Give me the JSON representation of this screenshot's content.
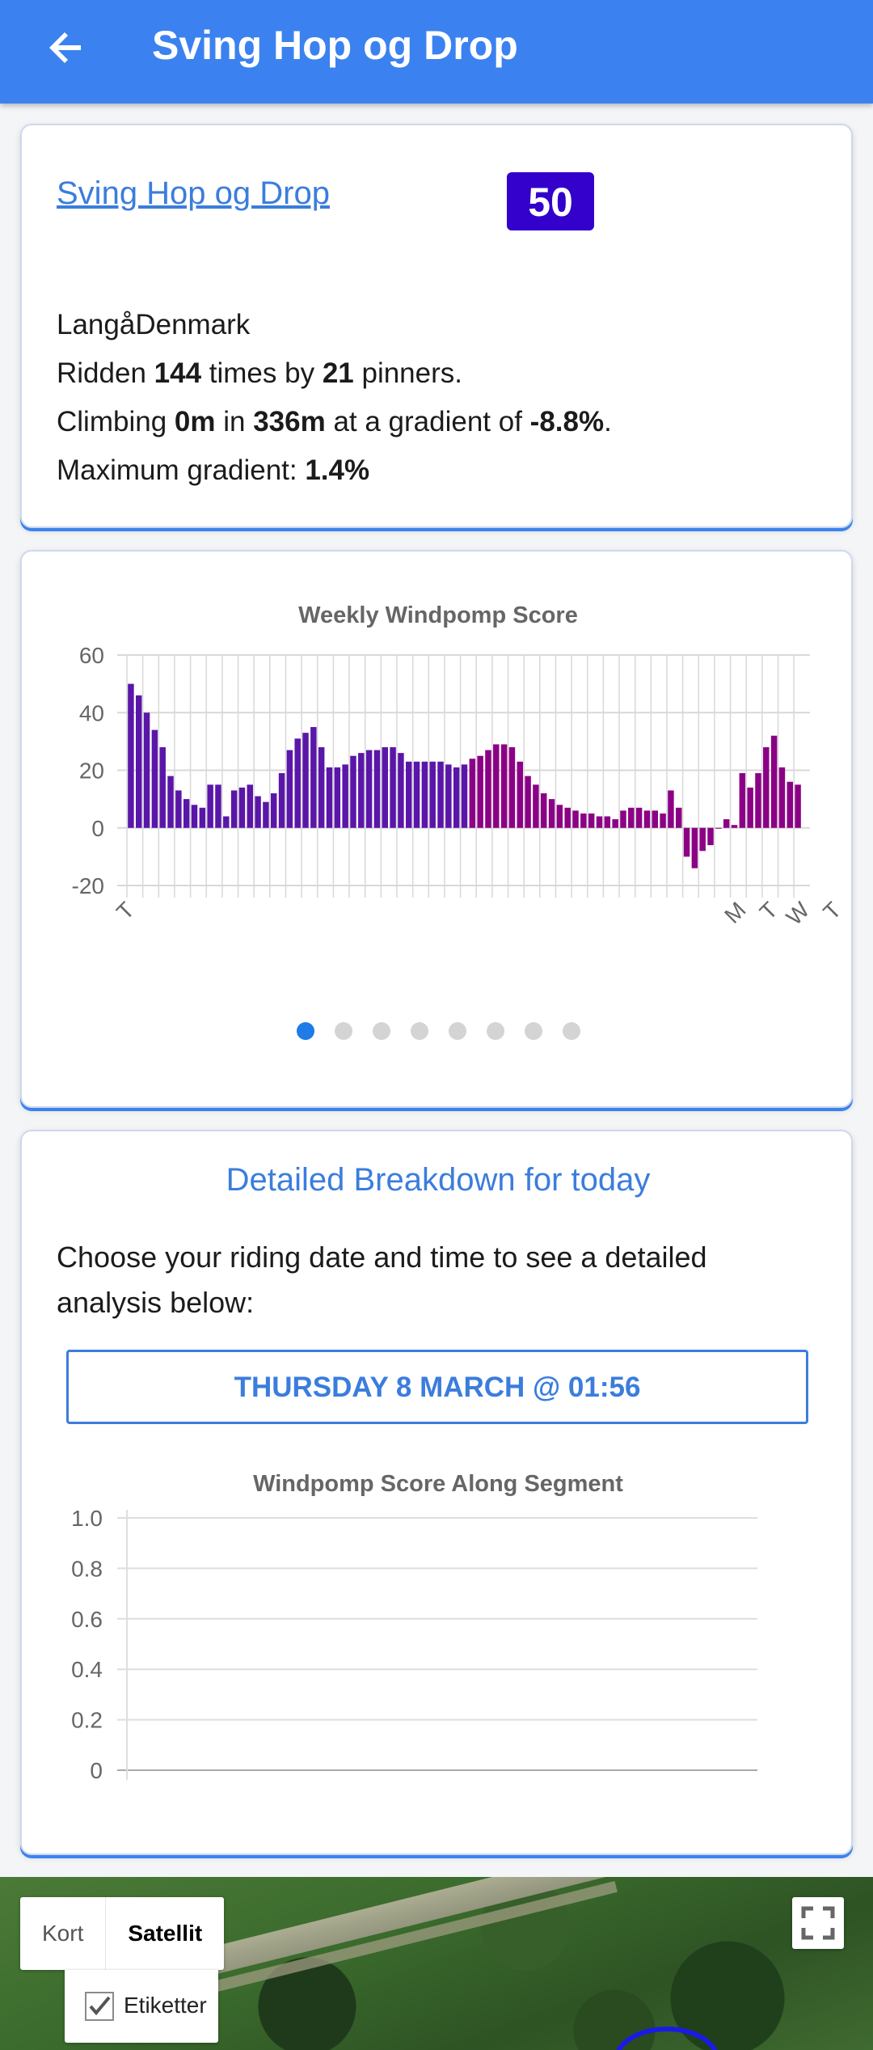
{
  "appbar": {
    "title": "Sving Hop og Drop"
  },
  "segment": {
    "link_text": "Sving Hop og Drop",
    "score": "50",
    "location": "LangåDenmark",
    "ridden_prefix": "Ridden ",
    "ridden_times": "144",
    "ridden_middle": " times by ",
    "ridden_pinners": "21",
    "ridden_suffix": " pinners.",
    "climb_prefix": "Climbing ",
    "climb_value": "0m",
    "climb_middle": " in ",
    "climb_distance": "336m",
    "climb_middle2": " at a gradient of ",
    "climb_gradient": "-8.8%",
    "climb_suffix": ".",
    "maxgrad_prefix": "Maximum gradient: ",
    "maxgrad_value": "1.4%"
  },
  "chart_data": [
    {
      "type": "bar",
      "title": "Weekly Windpomp Score",
      "ylim": [
        -20,
        60
      ],
      "yticks": [
        60,
        40,
        20,
        0,
        -20
      ],
      "x_tick_labels": [
        {
          "index": 0,
          "label": "T"
        },
        {
          "index": 77,
          "label": "M"
        },
        {
          "index": 81,
          "label": "T"
        },
        {
          "index": 85,
          "label": "W"
        },
        {
          "index": 89,
          "label": "T"
        }
      ],
      "values": [
        50,
        46,
        40,
        34,
        28,
        18,
        13,
        10,
        8,
        7,
        15,
        15,
        4,
        13,
        14,
        15,
        11,
        9,
        12,
        19,
        27,
        31,
        33,
        35,
        28,
        21,
        21,
        22,
        25,
        26,
        27,
        27,
        28,
        28,
        26,
        23,
        23,
        23,
        23,
        23,
        22,
        21,
        22,
        24,
        25,
        27,
        29,
        29,
        28,
        23,
        18,
        15,
        12,
        10,
        8,
        7,
        6,
        5,
        5,
        4,
        4,
        3,
        6,
        7,
        7,
        6,
        6,
        5,
        13,
        7,
        -10,
        -14,
        -8,
        -6,
        0,
        3,
        1,
        19,
        14,
        19,
        28,
        32,
        21,
        16,
        15
      ],
      "colors": [
        "#8b0085",
        "#5a16a8"
      ]
    },
    {
      "type": "line",
      "title": "Windpomp Score Along Segment",
      "ylim": [
        0,
        1.0
      ],
      "yticks": [
        "1.0",
        "0.8",
        "0.6",
        "0.4",
        "0.2",
        "0"
      ],
      "series": []
    }
  ],
  "carousel": {
    "count": 8,
    "active": 0
  },
  "breakdown": {
    "title": "Detailed Breakdown for today",
    "instruction": "Choose your riding date and time to see a detailed analysis below:",
    "date_button": "THURSDAY 8 MARCH @ 01:56"
  },
  "map": {
    "type_map": "Kort",
    "type_satellite": "Satellit",
    "labels": "Etiketter",
    "labels_checked": true
  }
}
